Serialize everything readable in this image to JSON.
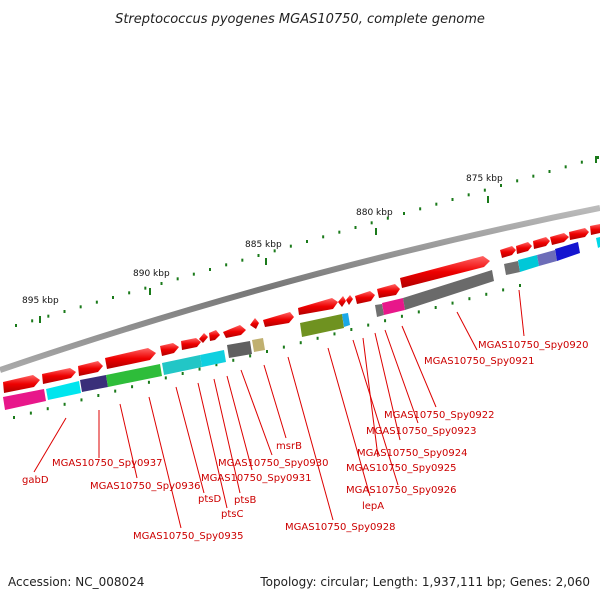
{
  "title": "Streptococcus pyogenes MGAS10750, complete genome",
  "footer": {
    "accession": "Accession: NC_008024",
    "topology": "Topology: circular; Length: 1,937,111 bp; Genes: 2,060"
  },
  "kbp_labels": [
    "875 kbp",
    "880 kbp",
    "885 kbp",
    "890 kbp",
    "895 kbp"
  ],
  "gene_labels": [
    "MGAS10750_Spy0920",
    "MGAS10750_Spy0921",
    "MGAS10750_Spy0922",
    "MGAS10750_Spy0923",
    "MGAS10750_Spy0924",
    "MGAS10750_Spy0925",
    "MGAS10750_Spy0926",
    "lepA",
    "MGAS10750_Spy0928",
    "msrB",
    "MGAS10750_Spy0930",
    "MGAS10750_Spy0931",
    "ptsB",
    "ptsC",
    "ptsD",
    "MGAS10750_Spy0935",
    "MGAS10750_Spy0936",
    "MGAS10750_Spy0937",
    "gabD"
  ],
  "colors": {
    "gene_arrow": "#ee0000",
    "backbone": "#888888",
    "tick": "#1a7a1a",
    "label": "#cc0000"
  }
}
